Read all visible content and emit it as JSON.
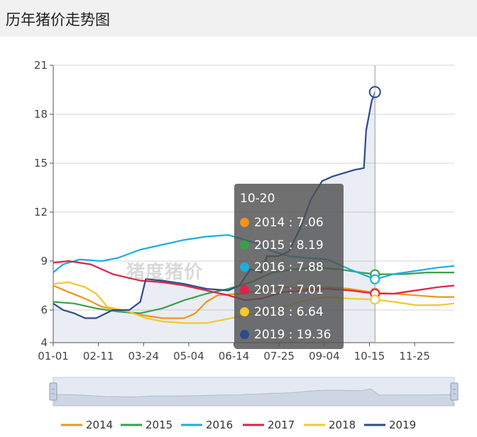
{
  "header": {
    "title": "历年猪价走势图"
  },
  "watermark": "猪度猪价",
  "tooltip": {
    "date": "10-20",
    "rows": [
      {
        "label": "2014 : 7.06",
        "color": "#f0941a"
      },
      {
        "label": "2015 : 8.19",
        "color": "#3aa04a"
      },
      {
        "label": "2016 : 7.88",
        "color": "#18aede"
      },
      {
        "label": "2017 : 7.01",
        "color": "#e02045"
      },
      {
        "label": "2018 : 6.64",
        "color": "#f2c830"
      },
      {
        "label": "2019 : 19.36",
        "color": "#2d4b8c"
      }
    ]
  },
  "chart_data": {
    "type": "line",
    "xlabel": "",
    "ylabel": "",
    "ylim": [
      4,
      21
    ],
    "yticks": [
      4,
      6,
      9,
      12,
      15,
      18,
      21
    ],
    "x_tick_labels": [
      "01-01",
      "02-11",
      "03-24",
      "05-04",
      "06-14",
      "07-25",
      "09-04",
      "10-15",
      "11-25"
    ],
    "x_tick_days": [
      1,
      42,
      83,
      124,
      165,
      206,
      247,
      288,
      329
    ],
    "x_range_days": [
      1,
      365
    ],
    "cursor_day": 293,
    "grid": true,
    "legend_position": "bottom",
    "series": [
      {
        "name": "2014",
        "color": "#f0941a",
        "points": [
          [
            1,
            7.5
          ],
          [
            15,
            7.1
          ],
          [
            30,
            6.7
          ],
          [
            45,
            6.2
          ],
          [
            60,
            6.0
          ],
          [
            80,
            5.7
          ],
          [
            100,
            5.5
          ],
          [
            120,
            5.5
          ],
          [
            130,
            5.8
          ],
          [
            140,
            6.5
          ],
          [
            150,
            6.9
          ],
          [
            170,
            7.0
          ],
          [
            190,
            7.2
          ],
          [
            210,
            7.4
          ],
          [
            230,
            7.3
          ],
          [
            250,
            7.4
          ],
          [
            270,
            7.3
          ],
          [
            293,
            7.06
          ],
          [
            310,
            7.0
          ],
          [
            330,
            6.9
          ],
          [
            350,
            6.8
          ],
          [
            365,
            6.8
          ]
        ]
      },
      {
        "name": "2015",
        "color": "#3aa04a",
        "points": [
          [
            1,
            6.5
          ],
          [
            20,
            6.4
          ],
          [
            40,
            6.1
          ],
          [
            60,
            5.9
          ],
          [
            80,
            5.8
          ],
          [
            100,
            6.1
          ],
          [
            120,
            6.6
          ],
          [
            140,
            7.0
          ],
          [
            160,
            7.3
          ],
          [
            180,
            7.7
          ],
          [
            200,
            8.3
          ],
          [
            220,
            8.5
          ],
          [
            240,
            8.6
          ],
          [
            260,
            8.5
          ],
          [
            280,
            8.3
          ],
          [
            293,
            8.19
          ],
          [
            320,
            8.2
          ],
          [
            340,
            8.3
          ],
          [
            365,
            8.3
          ]
        ]
      },
      {
        "name": "2016",
        "color": "#18aede",
        "points": [
          [
            1,
            8.3
          ],
          [
            10,
            8.8
          ],
          [
            25,
            9.1
          ],
          [
            45,
            9.0
          ],
          [
            60,
            9.2
          ],
          [
            80,
            9.7
          ],
          [
            100,
            10.0
          ],
          [
            120,
            10.3
          ],
          [
            140,
            10.5
          ],
          [
            160,
            10.6
          ],
          [
            170,
            10.4
          ],
          [
            185,
            10.1
          ],
          [
            200,
            9.6
          ],
          [
            215,
            9.3
          ],
          [
            230,
            9.2
          ],
          [
            250,
            9.1
          ],
          [
            270,
            8.5
          ],
          [
            285,
            8.1
          ],
          [
            293,
            7.88
          ],
          [
            310,
            8.2
          ],
          [
            330,
            8.4
          ],
          [
            350,
            8.6
          ],
          [
            365,
            8.7
          ]
        ]
      },
      {
        "name": "2017",
        "color": "#e02045",
        "points": [
          [
            1,
            8.9
          ],
          [
            15,
            9.0
          ],
          [
            35,
            8.8
          ],
          [
            55,
            8.2
          ],
          [
            80,
            7.8
          ],
          [
            100,
            7.7
          ],
          [
            120,
            7.5
          ],
          [
            140,
            7.2
          ],
          [
            160,
            6.9
          ],
          [
            175,
            6.6
          ],
          [
            190,
            6.7
          ],
          [
            210,
            7.1
          ],
          [
            230,
            7.2
          ],
          [
            250,
            7.3
          ],
          [
            270,
            7.2
          ],
          [
            293,
            7.01
          ],
          [
            310,
            7.0
          ],
          [
            330,
            7.2
          ],
          [
            350,
            7.4
          ],
          [
            365,
            7.5
          ]
        ]
      },
      {
        "name": "2018",
        "color": "#f2c830",
        "points": [
          [
            1,
            7.6
          ],
          [
            15,
            7.7
          ],
          [
            30,
            7.4
          ],
          [
            40,
            7.0
          ],
          [
            50,
            6.2
          ],
          [
            70,
            5.9
          ],
          [
            85,
            5.5
          ],
          [
            100,
            5.3
          ],
          [
            120,
            5.2
          ],
          [
            140,
            5.2
          ],
          [
            155,
            5.4
          ],
          [
            170,
            5.6
          ],
          [
            185,
            5.8
          ],
          [
            200,
            6.0
          ],
          [
            215,
            6.3
          ],
          [
            230,
            6.6
          ],
          [
            250,
            6.8
          ],
          [
            270,
            6.7
          ],
          [
            293,
            6.64
          ],
          [
            310,
            6.5
          ],
          [
            330,
            6.3
          ],
          [
            350,
            6.3
          ],
          [
            365,
            6.4
          ]
        ]
      },
      {
        "name": "2019",
        "color": "#2d4b8c",
        "points": [
          [
            1,
            6.4
          ],
          [
            10,
            6.0
          ],
          [
            20,
            5.8
          ],
          [
            30,
            5.5
          ],
          [
            40,
            5.5
          ],
          [
            55,
            6.0
          ],
          [
            70,
            6.0
          ],
          [
            80,
            6.5
          ],
          [
            85,
            7.9
          ],
          [
            100,
            7.8
          ],
          [
            120,
            7.6
          ],
          [
            140,
            7.3
          ],
          [
            160,
            7.2
          ],
          [
            170,
            7.5
          ],
          [
            180,
            8.5
          ],
          [
            190,
            8.3
          ],
          [
            195,
            9.3
          ],
          [
            205,
            9.3
          ],
          [
            215,
            9.6
          ],
          [
            225,
            11.0
          ],
          [
            235,
            12.8
          ],
          [
            245,
            13.9
          ],
          [
            255,
            14.2
          ],
          [
            265,
            14.4
          ],
          [
            275,
            14.6
          ],
          [
            283,
            14.7
          ],
          [
            285,
            17.0
          ],
          [
            290,
            18.8
          ],
          [
            293,
            19.36
          ]
        ]
      }
    ]
  }
}
